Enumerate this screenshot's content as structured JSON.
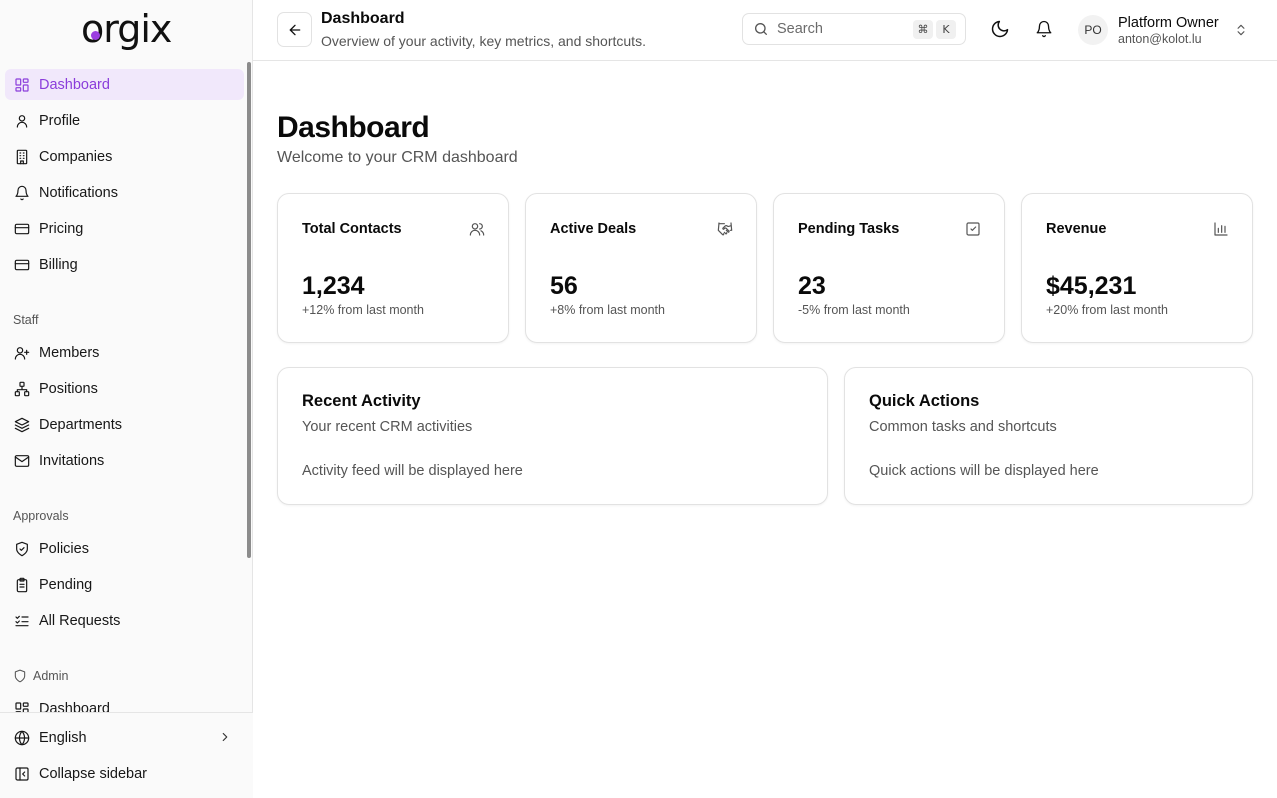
{
  "brand": {
    "logo_text": "orgix",
    "accent": "#8b3ddb"
  },
  "sidebar": {
    "main_items": [
      {
        "label": "Dashboard",
        "icon": "layout-dashboard-icon",
        "active": true
      },
      {
        "label": "Profile",
        "icon": "user-icon"
      },
      {
        "label": "Companies",
        "icon": "building-icon"
      },
      {
        "label": "Notifications",
        "icon": "bell-icon"
      },
      {
        "label": "Pricing",
        "icon": "credit-card-icon"
      },
      {
        "label": "Billing",
        "icon": "credit-card-icon"
      }
    ],
    "staff": {
      "label": "Staff",
      "items": [
        {
          "label": "Members",
          "icon": "user-plus-icon"
        },
        {
          "label": "Positions",
          "icon": "network-icon"
        },
        {
          "label": "Departments",
          "icon": "layers-icon"
        },
        {
          "label": "Invitations",
          "icon": "mail-icon"
        }
      ]
    },
    "approvals": {
      "label": "Approvals",
      "items": [
        {
          "label": "Policies",
          "icon": "shield-check-icon"
        },
        {
          "label": "Pending",
          "icon": "clipboard-icon"
        },
        {
          "label": "All Requests",
          "icon": "list-checks-icon"
        }
      ]
    },
    "admin": {
      "label": "Admin",
      "items": [
        {
          "label": "Dashboard",
          "icon": "layout-dashboard-icon"
        }
      ]
    },
    "footer": {
      "language": "English",
      "collapse": "Collapse sidebar"
    }
  },
  "header": {
    "title": "Dashboard",
    "subtitle": "Overview of your activity, key metrics, and shortcuts.",
    "search": {
      "placeholder": "Search",
      "shortcut_keys": [
        "⌘",
        "K"
      ]
    },
    "user": {
      "initials": "PO",
      "name": "Platform Owner",
      "email": "anton@kolot.lu"
    }
  },
  "main": {
    "title": "Dashboard",
    "subtitle": "Welcome to your CRM dashboard",
    "stats": [
      {
        "title": "Total Contacts",
        "value": "1,234",
        "change": "+12% from last month",
        "icon": "users-icon"
      },
      {
        "title": "Active Deals",
        "value": "56",
        "change": "+8% from last month",
        "icon": "handshake-icon"
      },
      {
        "title": "Pending Tasks",
        "value": "23",
        "change": "-5% from last month",
        "icon": "square-check-icon"
      },
      {
        "title": "Revenue",
        "value": "$45,231",
        "change": "+20% from last month",
        "icon": "bar-chart-icon"
      }
    ],
    "panels": {
      "activity": {
        "title": "Recent Activity",
        "description": "Your recent CRM activities",
        "body": "Activity feed will be displayed here"
      },
      "quick_actions": {
        "title": "Quick Actions",
        "description": "Common tasks and shortcuts",
        "body": "Quick actions will be displayed here"
      }
    }
  }
}
